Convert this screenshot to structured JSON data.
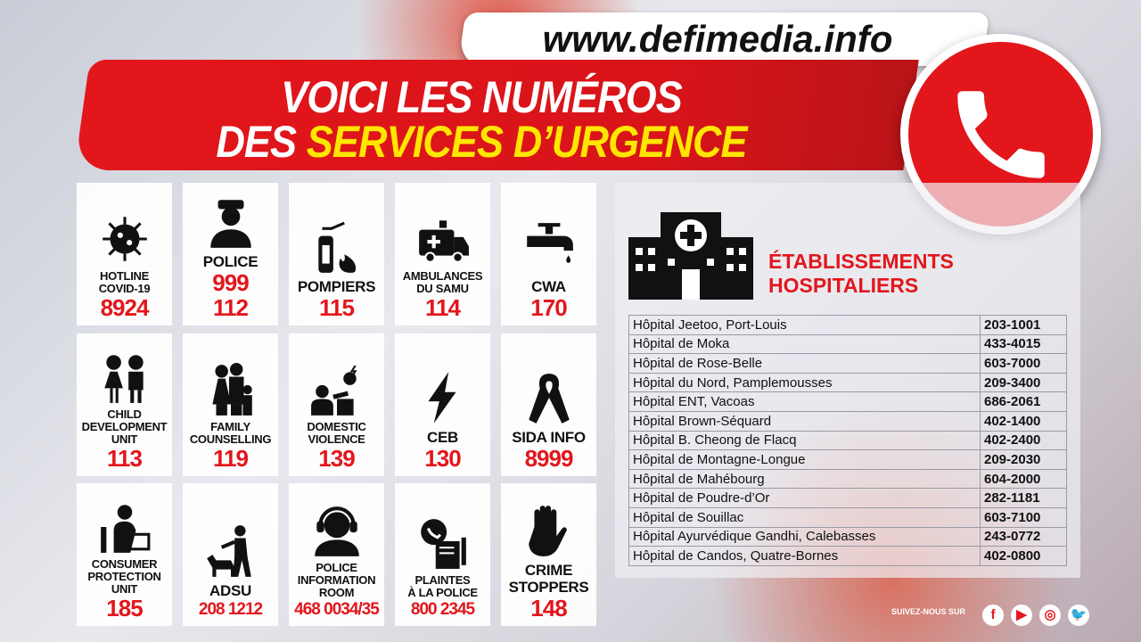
{
  "website": "www.defimedia.info",
  "title": {
    "line1": "VOICI LES NUMÉROS",
    "line2_prefix": "DES ",
    "line2_highlight": "SERVICES D’URGENCE"
  },
  "colors": {
    "accent": "#e3161c",
    "highlight": "#ffe600"
  },
  "services": [
    {
      "icon": "virus-icon",
      "label": [
        "HOTLINE",
        "COVID-19"
      ],
      "numbers": [
        "8924"
      ]
    },
    {
      "icon": "police-officer-icon",
      "label": [
        "POLICE"
      ],
      "numbers": [
        "999",
        "112"
      ]
    },
    {
      "icon": "fire-extinguisher-icon",
      "label": [
        "POMPIERS"
      ],
      "numbers": [
        "115"
      ]
    },
    {
      "icon": "ambulance-icon",
      "label": [
        "AMBULANCES",
        "DU SAMU"
      ],
      "numbers": [
        "114"
      ]
    },
    {
      "icon": "water-tap-icon",
      "label": [
        "CWA"
      ],
      "numbers": [
        "170"
      ]
    },
    {
      "icon": "children-icon",
      "label": [
        "CHILD",
        "DEVELOPMENT",
        "UNIT"
      ],
      "numbers": [
        "113"
      ]
    },
    {
      "icon": "family-icon",
      "label": [
        "FAMILY",
        "COUNSELLING"
      ],
      "numbers": [
        "119"
      ]
    },
    {
      "icon": "domestic-violence-icon",
      "label": [
        "DOMESTIC",
        "VIOLENCE"
      ],
      "numbers": [
        "139"
      ]
    },
    {
      "icon": "lightning-icon",
      "label": [
        "CEB"
      ],
      "numbers": [
        "130"
      ]
    },
    {
      "icon": "ribbon-icon",
      "label": [
        "SIDA INFO"
      ],
      "numbers": [
        "8999"
      ]
    },
    {
      "icon": "shopper-icon",
      "label": [
        "CONSUMER",
        "PROTECTION",
        "UNIT"
      ],
      "numbers": [
        "185"
      ]
    },
    {
      "icon": "dog-handler-icon",
      "label": [
        "ADSU"
      ],
      "numbers": [
        "208 1212"
      ]
    },
    {
      "icon": "headset-operator-icon",
      "label": [
        "POLICE",
        "INFORMATION",
        "ROOM"
      ],
      "numbers": [
        "468 0034/35"
      ]
    },
    {
      "icon": "phone-complaint-icon",
      "label": [
        "PLAINTES",
        "À LA POLICE"
      ],
      "numbers": [
        "800 2345"
      ]
    },
    {
      "icon": "stop-hand-icon",
      "label": [
        "CRIME",
        "STOPPERS"
      ],
      "numbers": [
        "148"
      ]
    }
  ],
  "hospitals": {
    "heading": [
      "ÉTABLISSEMENTS",
      "HOSPITALIERS"
    ],
    "rows": [
      [
        "Hôpital Jeetoo, Port-Louis",
        "203-1001"
      ],
      [
        "Hôpital de Moka",
        "433-4015"
      ],
      [
        "Hôpital de Rose-Belle",
        "603-7000"
      ],
      [
        "Hôpital du Nord, Pamplemousses",
        "209-3400"
      ],
      [
        "Hôpital ENT, Vacoas",
        "686-2061"
      ],
      [
        "Hôpital Brown-Séquard",
        "402-1400"
      ],
      [
        "Hôpital B. Cheong de Flacq",
        "402-2400"
      ],
      [
        "Hôpital de Montagne-Longue",
        "209-2030"
      ],
      [
        "Hôpital de Mahébourg",
        "604-2000"
      ],
      [
        "Hôpital de Poudre-d’Or",
        "282-1181"
      ],
      [
        "Hôpital de Souillac",
        "603-7100"
      ],
      [
        "Hôpital Ayurvédique Gandhi, Calebasses",
        "243-0772"
      ],
      [
        "Hôpital de Candos, Quatre-Bornes",
        "402-0800"
      ]
    ]
  },
  "footer": {
    "follow": "SUIVEZ-NOUS SUR",
    "social": [
      {
        "icon": "facebook-icon",
        "glyph": "f"
      },
      {
        "icon": "youtube-icon",
        "glyph": "▶"
      },
      {
        "icon": "instagram-icon",
        "glyph": "◎"
      },
      {
        "icon": "twitter-icon",
        "glyph": "🐦"
      }
    ]
  }
}
